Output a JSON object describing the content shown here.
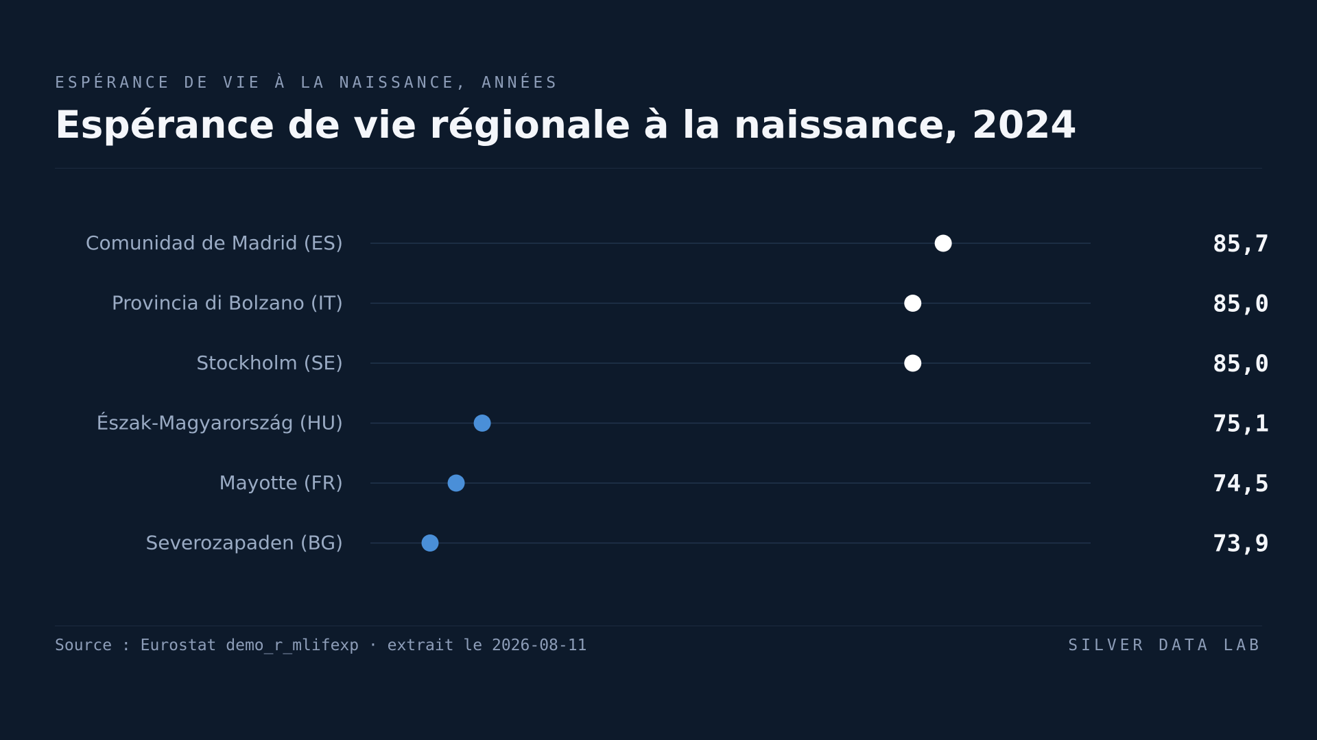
{
  "header": {
    "kicker": "ESPÉRANCE DE VIE À LA NAISSANCE, ANNÉES",
    "title": "Espérance de vie régionale à la naissance, 2024"
  },
  "footer": {
    "source": "Source : Eurostat demo_r_mlifexp · extrait le 2026-08-11",
    "brand": "SILVER DATA LAB"
  },
  "colors": {
    "background": "#0d1a2b",
    "highlight_dot": "#ffffff",
    "other_dot": "#4a8fd8",
    "track": "#22344d"
  },
  "chart_data": {
    "type": "dot",
    "title": "Espérance de vie régionale à la naissance, 2024",
    "ylabel": "",
    "xlabel": "",
    "xlim": [
      72,
      87
    ],
    "grid": false,
    "categories": [
      "Comunidad de Madrid (ES)",
      "Provincia di Bolzano (IT)",
      "Stockholm (SE)",
      "Észak-Magyarország (HU)",
      "Mayotte (FR)",
      "Severozapaden (BG)"
    ],
    "values": [
      85.7,
      85.0,
      85.0,
      75.1,
      74.5,
      73.9
    ],
    "value_labels": [
      "85,7",
      "85,0",
      "85,0",
      "75,1",
      "74,5",
      "73,9"
    ],
    "highlight": [
      true,
      true,
      true,
      false,
      false,
      false
    ]
  }
}
